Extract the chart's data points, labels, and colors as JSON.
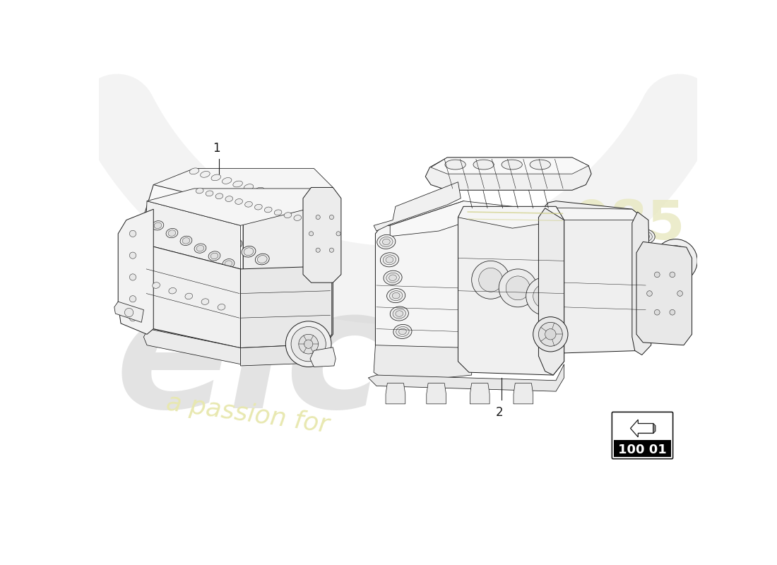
{
  "bg_color": "#ffffff",
  "line_color": "#1a1a1a",
  "lw": 0.7,
  "watermark_elc_color": "#d8d8d8",
  "watermark_es_color": "#d8d8d8",
  "watermark_passion_color": "#e8e8b0",
  "watermark_085_color": "#e8e8c0",
  "part_box_label": "100 01",
  "part1_label": "1",
  "part2_label": "2",
  "arrow_gray": "#aaaaaa"
}
